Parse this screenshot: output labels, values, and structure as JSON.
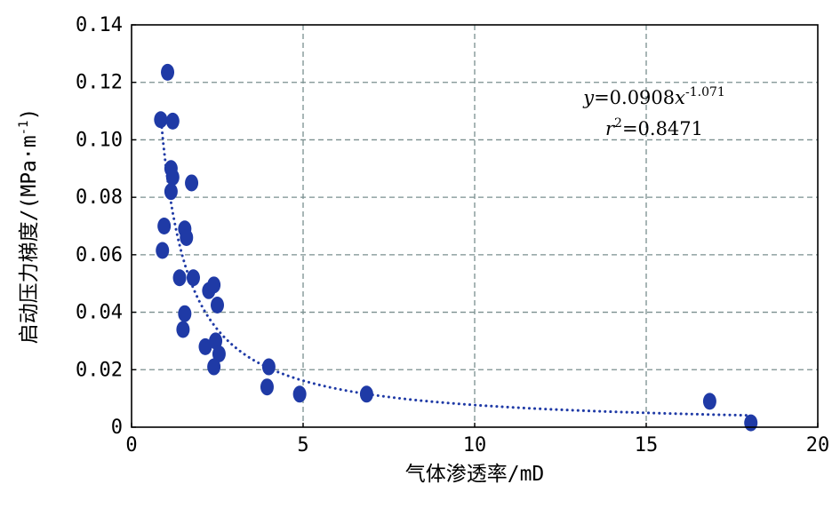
{
  "chart_data": {
    "type": "scatter",
    "xlabel": "气体渗透率/mD",
    "ylabel": "启动压力梯度/(MPa·m",
    "ylabel_sup": "-1",
    "ylabel_close": ")",
    "xlim": [
      0,
      20
    ],
    "ylim": [
      0,
      0.14
    ],
    "x_ticks": [
      0,
      5,
      10,
      15,
      20
    ],
    "y_ticks": [
      0,
      0.02,
      0.04,
      0.06,
      0.08,
      0.1,
      0.12,
      0.14
    ],
    "x_tick_labels": [
      "0",
      "5",
      "10",
      "15",
      "20"
    ],
    "y_tick_labels": [
      "0",
      "0.02",
      "0.04",
      "0.06",
      "0.08",
      "0.10",
      "0.12",
      "0.14"
    ],
    "grid": true,
    "colors": {
      "points": "#1f3aa6",
      "trend": "#1f3aa6",
      "grid": "#7a8f8f",
      "axes": "#000000"
    },
    "points": [
      {
        "x": 0.85,
        "y": 0.107
      },
      {
        "x": 0.9,
        "y": 0.0615
      },
      {
        "x": 0.95,
        "y": 0.07
      },
      {
        "x": 1.05,
        "y": 0.1235
      },
      {
        "x": 1.15,
        "y": 0.09
      },
      {
        "x": 1.2,
        "y": 0.1065
      },
      {
        "x": 1.2,
        "y": 0.087
      },
      {
        "x": 1.15,
        "y": 0.082
      },
      {
        "x": 1.4,
        "y": 0.052
      },
      {
        "x": 1.55,
        "y": 0.069
      },
      {
        "x": 1.6,
        "y": 0.066
      },
      {
        "x": 1.55,
        "y": 0.0395
      },
      {
        "x": 1.5,
        "y": 0.034
      },
      {
        "x": 1.75,
        "y": 0.085
      },
      {
        "x": 1.8,
        "y": 0.052
      },
      {
        "x": 2.15,
        "y": 0.028
      },
      {
        "x": 2.25,
        "y": 0.0475
      },
      {
        "x": 2.4,
        "y": 0.0495
      },
      {
        "x": 2.5,
        "y": 0.0425
      },
      {
        "x": 2.45,
        "y": 0.03
      },
      {
        "x": 2.55,
        "y": 0.0255
      },
      {
        "x": 2.4,
        "y": 0.021
      },
      {
        "x": 4.0,
        "y": 0.021
      },
      {
        "x": 3.95,
        "y": 0.014
      },
      {
        "x": 4.9,
        "y": 0.0115
      },
      {
        "x": 6.85,
        "y": 0.0115
      },
      {
        "x": 16.85,
        "y": 0.009
      },
      {
        "x": 18.05,
        "y": 0.0015
      }
    ],
    "trendline": {
      "a": 0.0908,
      "b": -1.071,
      "x_from": 0.85,
      "x_to": 18.05
    },
    "annotation": {
      "eq_y": "y",
      "eq_mid": "=0.0908",
      "eq_x": "x",
      "eq_exp": "-1.071",
      "r_sym": "r",
      "r_exp": "2",
      "r_val": "=0.8471"
    }
  }
}
